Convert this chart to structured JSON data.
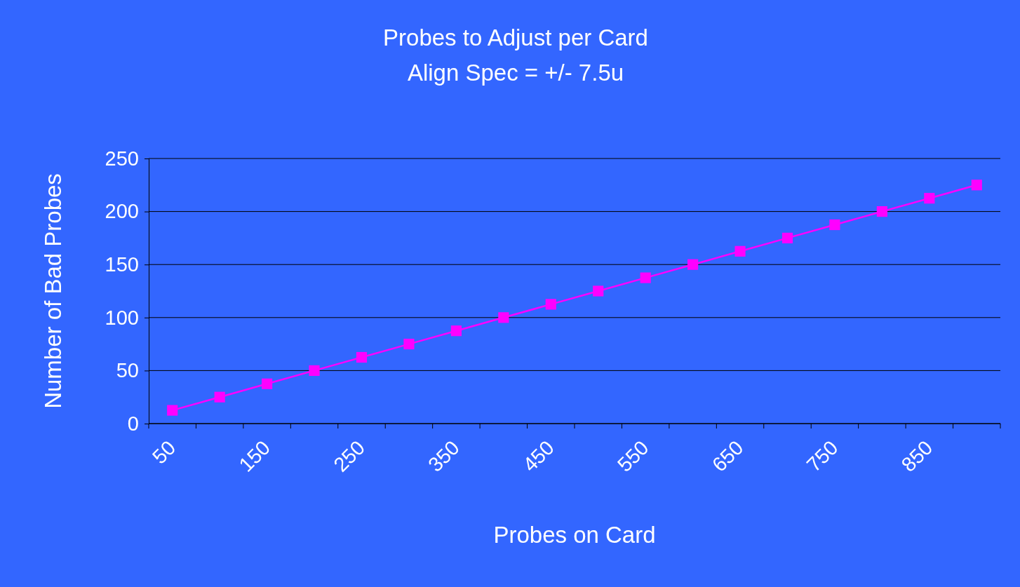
{
  "chart_data": {
    "type": "line",
    "title": "Probes to Adjust per Card",
    "subtitle": "Align Spec = +/- 7.5u",
    "xlabel": "Probes on Card",
    "ylabel": "Number of Bad Probes",
    "categories": [
      "50",
      null,
      "150",
      null,
      "250",
      null,
      "350",
      null,
      "450",
      null,
      "550",
      null,
      "650",
      null,
      "750",
      null,
      "850",
      null
    ],
    "series": [
      {
        "color": "#ff00ff",
        "values": [
          12.5,
          25,
          37.5,
          50,
          62.5,
          75,
          87.5,
          100,
          112.5,
          125,
          137.5,
          150,
          162.5,
          175,
          187.5,
          200,
          212.5,
          225
        ]
      }
    ],
    "ylim": [
      0,
      250
    ],
    "yticks": [
      0,
      50,
      100,
      150,
      200,
      250
    ],
    "grid": "y",
    "marker": "square",
    "line_style": "solid"
  }
}
